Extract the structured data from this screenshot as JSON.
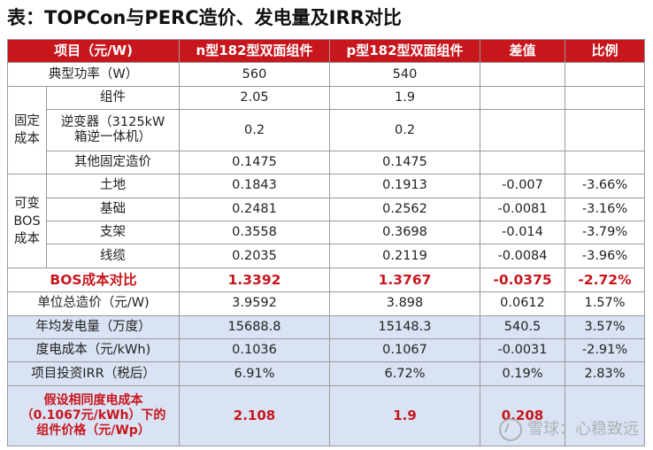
{
  "title": "表：TOPCon与PERC造价、发电量及IRR对比",
  "headers": [
    "项目（元/W)",
    "n型182型双面组件",
    "p型182型双面组件",
    "差值",
    "比例"
  ],
  "rows": {
    "power": {
      "label": "典型功率（W）",
      "n": "560",
      "p": "540",
      "diff": "",
      "ratio": ""
    },
    "fixed_group": "固定\n成本",
    "module": {
      "label": "组件",
      "n": "2.05",
      "p": "1.9",
      "diff": "",
      "ratio": ""
    },
    "inverter": {
      "label": "逆变器（3125kW\n箱逆一体机）",
      "n": "0.2",
      "p": "0.2",
      "diff": "",
      "ratio": ""
    },
    "other_fixed": {
      "label": "其他固定造价",
      "n": "0.1475",
      "p": "0.1475",
      "diff": "",
      "ratio": ""
    },
    "var_group": "可变\nBOS\n成本",
    "land": {
      "label": "土地",
      "n": "0.1843",
      "p": "0.1913",
      "diff": "-0.007",
      "ratio": "-3.66%"
    },
    "foundation": {
      "label": "基础",
      "n": "0.2481",
      "p": "0.2562",
      "diff": "-0.0081",
      "ratio": "-3.16%"
    },
    "bracket": {
      "label": "支架",
      "n": "0.3558",
      "p": "0.3698",
      "diff": "-0.014",
      "ratio": "-3.79%"
    },
    "cable": {
      "label": "线缆",
      "n": "0.2035",
      "p": "0.2119",
      "diff": "-0.0084",
      "ratio": "-3.96%"
    },
    "bos_compare": {
      "label": "BOS成本对比",
      "n": "1.3392",
      "p": "1.3767",
      "diff": "-0.0375",
      "ratio": "-2.72%"
    },
    "unit_cost": {
      "label": "单位总造价（元/W)",
      "n": "3.9592",
      "p": "3.898",
      "diff": "0.0612",
      "ratio": "1.57%"
    },
    "annual_gen": {
      "label": "年均发电量（万度）",
      "n": "15688.8",
      "p": "15148.3",
      "diff": "540.5",
      "ratio": "3.57%"
    },
    "lcoe": {
      "label": "度电成本（元/kWh)",
      "n": "0.1036",
      "p": "0.1067",
      "diff": "-0.0031",
      "ratio": "-2.91%"
    },
    "irr": {
      "label": "项目投资IRR（税后）",
      "n": "6.91%",
      "p": "6.72%",
      "diff": "0.19%",
      "ratio": "2.83%"
    },
    "assumed": {
      "label": "假设相同度电成本\n（0.1067元/kWh）下的\n组件价格（元/Wp）",
      "n": "2.108",
      "p": "1.9",
      "diff": "0.208",
      "ratio": ""
    }
  },
  "watermark": "雪球：心稳致远",
  "colors": {
    "header_bg": "#c8161d",
    "highlight_text": "#c8161d",
    "blue_row": "#dae3f3"
  }
}
